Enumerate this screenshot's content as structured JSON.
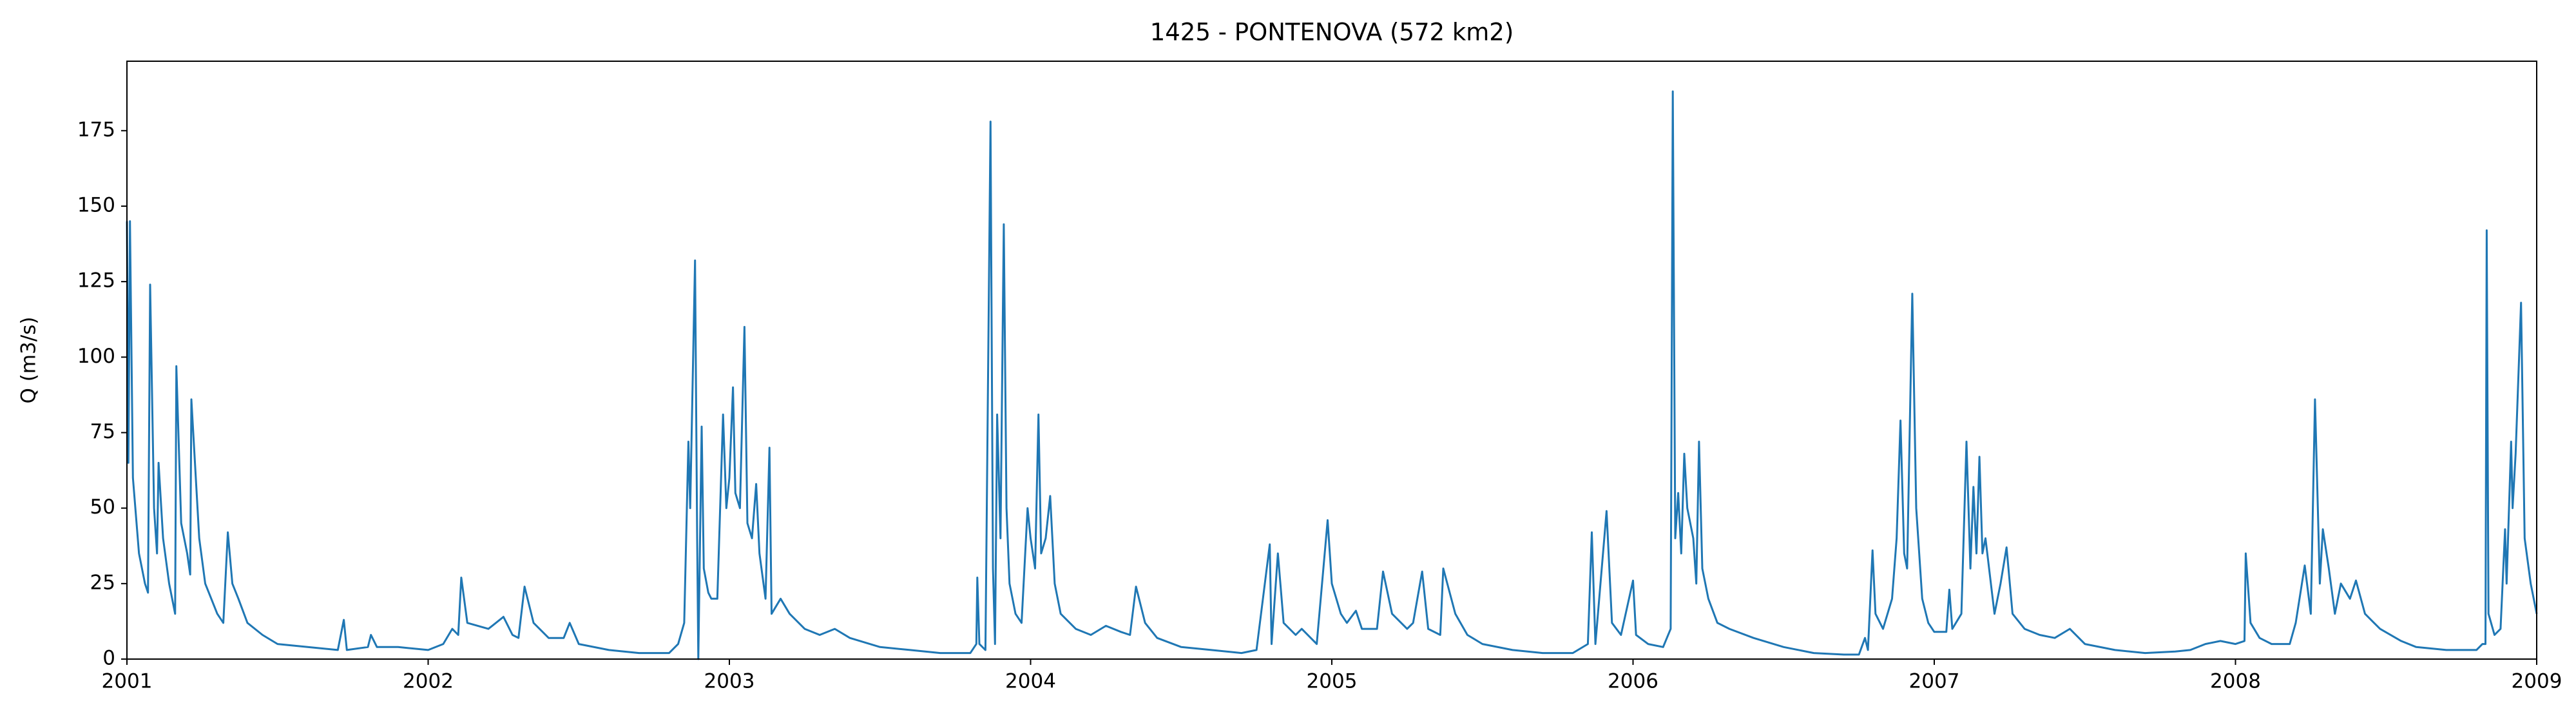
{
  "chart_data": {
    "type": "line",
    "title": "1425 - PONTENOVA (572 km2)",
    "y_label": "Q (m3/s)",
    "color": "#1f77b4",
    "xlim": [
      2001,
      2009
    ],
    "xticks": [
      2001,
      2002,
      2003,
      2004,
      2005,
      2006,
      2007,
      2008,
      2009
    ],
    "ylim": [
      0,
      198
    ],
    "yticks": [
      0,
      25,
      50,
      75,
      100,
      125,
      150,
      175
    ],
    "x": [
      2001.0,
      2001.005,
      2001.01,
      2001.02,
      2001.04,
      2001.06,
      2001.07,
      2001.077,
      2001.09,
      2001.1,
      2001.105,
      2001.12,
      2001.14,
      2001.16,
      2001.164,
      2001.18,
      2001.2,
      2001.21,
      2001.214,
      2001.24,
      2001.26,
      2001.28,
      2001.3,
      2001.32,
      2001.335,
      2001.35,
      2001.37,
      2001.4,
      2001.45,
      2001.5,
      2001.6,
      2001.7,
      2001.72,
      2001.73,
      2001.8,
      2001.81,
      2001.83,
      2001.9,
      2002.0,
      2002.05,
      2002.08,
      2002.1,
      2002.11,
      2002.13,
      2002.2,
      2002.25,
      2002.28,
      2002.3,
      2002.32,
      2002.35,
      2002.4,
      2002.45,
      2002.47,
      2002.5,
      2002.6,
      2002.7,
      2002.8,
      2002.83,
      2002.85,
      2002.864,
      2002.87,
      2002.886,
      2002.893,
      2002.897,
      2002.908,
      2002.915,
      2002.93,
      2002.94,
      2002.96,
      2002.979,
      2002.99,
      2003.0,
      2003.012,
      2003.02,
      2003.035,
      2003.05,
      2003.06,
      2003.075,
      2003.089,
      2003.1,
      2003.12,
      2003.133,
      2003.14,
      2003.17,
      2003.2,
      2003.25,
      2003.3,
      2003.35,
      2003.4,
      2003.5,
      2003.6,
      2003.7,
      2003.8,
      2003.82,
      2003.823,
      2003.83,
      2003.85,
      2003.867,
      2003.875,
      2003.882,
      2003.889,
      2003.9,
      2003.911,
      2003.92,
      2003.93,
      2003.95,
      2003.97,
      2003.99,
      2004.0,
      2004.015,
      2004.026,
      2004.035,
      2004.05,
      2004.065,
      2004.08,
      2004.1,
      2004.15,
      2004.2,
      2004.25,
      2004.3,
      2004.33,
      2004.35,
      2004.38,
      2004.42,
      2004.5,
      2004.6,
      2004.7,
      2004.75,
      2004.794,
      2004.8,
      2004.821,
      2004.84,
      2004.88,
      2004.9,
      2004.95,
      2004.986,
      2005.0,
      2005.03,
      2005.05,
      2005.08,
      2005.1,
      2005.15,
      2005.17,
      2005.2,
      2005.25,
      2005.27,
      2005.3,
      2005.32,
      2005.36,
      2005.37,
      2005.41,
      2005.45,
      2005.5,
      2005.6,
      2005.7,
      2005.8,
      2005.85,
      2005.863,
      2005.875,
      2005.912,
      2005.93,
      2005.96,
      2006.0,
      2006.01,
      2006.05,
      2006.1,
      2006.125,
      2006.132,
      2006.14,
      2006.15,
      2006.16,
      2006.17,
      2006.18,
      2006.2,
      2006.21,
      2006.219,
      2006.23,
      2006.25,
      2006.28,
      2006.32,
      2006.4,
      2006.5,
      2006.6,
      2006.7,
      2006.75,
      2006.77,
      2006.78,
      2006.795,
      2006.805,
      2006.83,
      2006.86,
      2006.875,
      2006.888,
      2006.9,
      2006.91,
      2006.927,
      2006.94,
      2006.96,
      2006.98,
      2007.0,
      2007.04,
      2007.05,
      2007.06,
      2007.09,
      2007.107,
      2007.12,
      2007.13,
      2007.14,
      2007.15,
      2007.16,
      2007.17,
      2007.2,
      2007.22,
      2007.24,
      2007.26,
      2007.3,
      2007.35,
      2007.4,
      2007.45,
      2007.5,
      2007.6,
      2007.7,
      2007.8,
      2007.85,
      2007.9,
      2007.95,
      2008.0,
      2008.03,
      2008.034,
      2008.05,
      2008.08,
      2008.12,
      2008.18,
      2008.2,
      2008.23,
      2008.25,
      2008.264,
      2008.28,
      2008.29,
      2008.31,
      2008.33,
      2008.35,
      2008.38,
      2008.4,
      2008.43,
      2008.48,
      2008.55,
      2008.6,
      2008.7,
      2008.8,
      2008.82,
      2008.83,
      2008.834,
      2008.84,
      2008.86,
      2008.88,
      2008.895,
      2008.9,
      2008.915,
      2008.92,
      2008.93,
      2008.948,
      2008.96,
      2008.98,
      2009.0
    ],
    "values": [
      145,
      65,
      145,
      60,
      35,
      25,
      22,
      124,
      50,
      35,
      65,
      40,
      25,
      15,
      97,
      45,
      35,
      28,
      86,
      40,
      25,
      20,
      15,
      12,
      42,
      25,
      20,
      12,
      8,
      5,
      4,
      3,
      13,
      3,
      4,
      8,
      4,
      4,
      3,
      5,
      10,
      8,
      27,
      12,
      10,
      14,
      8,
      7,
      24,
      12,
      7,
      7,
      12,
      5,
      3,
      2,
      2,
      5,
      12,
      72,
      50,
      132,
      40,
      0,
      77,
      30,
      22,
      20,
      20,
      81,
      50,
      60,
      90,
      55,
      50,
      110,
      45,
      40,
      58,
      35,
      20,
      70,
      15,
      20,
      15,
      10,
      8,
      10,
      7,
      4,
      3,
      2,
      2,
      5,
      27,
      5,
      3,
      178,
      30,
      5,
      81,
      40,
      144,
      50,
      25,
      15,
      12,
      50,
      40,
      30,
      81,
      35,
      40,
      54,
      25,
      15,
      10,
      8,
      11,
      9,
      8,
      24,
      12,
      7,
      4,
      3,
      2,
      3,
      38,
      5,
      35,
      12,
      8,
      10,
      5,
      46,
      25,
      15,
      12,
      16,
      10,
      10,
      29,
      15,
      10,
      12,
      29,
      10,
      8,
      30,
      15,
      8,
      5,
      3,
      2,
      2,
      5,
      42,
      5,
      49,
      12,
      8,
      26,
      8,
      5,
      4,
      10,
      188,
      40,
      55,
      35,
      68,
      50,
      40,
      25,
      72,
      30,
      20,
      12,
      10,
      7,
      4,
      2,
      1.5,
      1.5,
      7,
      3,
      36,
      15,
      10,
      20,
      40,
      79,
      35,
      30,
      121,
      50,
      20,
      12,
      9,
      9,
      23,
      10,
      15,
      72,
      30,
      57,
      35,
      67,
      35,
      40,
      15,
      25,
      37,
      15,
      10,
      8,
      7,
      10,
      5,
      3,
      2,
      2.5,
      3,
      5,
      6,
      5,
      6,
      35,
      12,
      7,
      5,
      5,
      12,
      31,
      15,
      86,
      25,
      43,
      30,
      15,
      25,
      20,
      26,
      15,
      10,
      6,
      4,
      3,
      3,
      5,
      5,
      142,
      15,
      8,
      10,
      43,
      25,
      72,
      50,
      68,
      118,
      40,
      25,
      15
    ]
  }
}
